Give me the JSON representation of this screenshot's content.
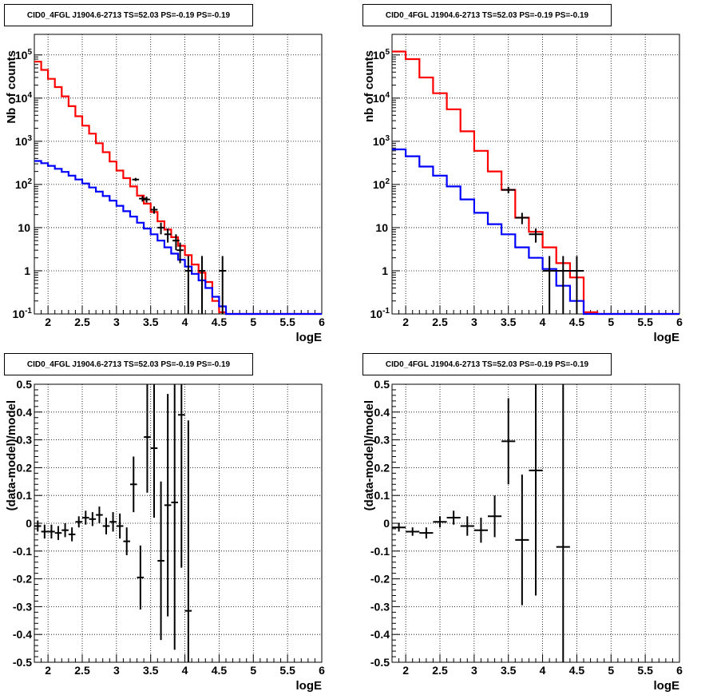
{
  "chart_data": [
    {
      "type": "line",
      "title": "CID0_4FGL J1904.6-2713 TS=52.03 PS=-0.19 PS=-0.19",
      "xlabel": "logE",
      "ylabel": "Nb of counts",
      "xlim": [
        1.8,
        6.0
      ],
      "ylim": [
        0.1,
        300000
      ],
      "yscale": "log",
      "grid": true,
      "xticks": [
        "2",
        "2.5",
        "3",
        "3.5",
        "4",
        "4.5",
        "5",
        "5.5",
        "6"
      ],
      "yticks": [
        "10^-1",
        "1",
        "10",
        "10^2",
        "10^3",
        "10^4",
        "10^5"
      ],
      "bin_edges": [
        1.8,
        1.9,
        2.0,
        2.1,
        2.2,
        2.3,
        2.4,
        2.5,
        2.6,
        2.7,
        2.8,
        2.9,
        3.0,
        3.1,
        3.2,
        3.3,
        3.4,
        3.5,
        3.6,
        3.7,
        3.8,
        3.9,
        4.0,
        4.1,
        4.2,
        4.3,
        4.4,
        4.5,
        4.6,
        4.7,
        4.8,
        4.9,
        5.0,
        5.1,
        5.2,
        5.3,
        5.4,
        5.5,
        5.6,
        5.7,
        5.8,
        5.9,
        6.0
      ],
      "series": [
        {
          "values": [
            70000,
            45000,
            28000,
            18000,
            11000,
            6500,
            3800,
            2300,
            1500,
            900,
            560,
            340,
            210,
            140,
            90,
            55,
            36,
            23,
            14,
            9,
            6,
            3.8,
            2.3,
            1.4,
            0.9,
            0.55,
            0.2,
            0.11,
            0.1,
            0.1,
            0.1,
            0.1,
            0.1,
            0.1,
            0.1,
            0.1,
            0.1,
            0.1,
            0.1,
            0.1,
            0.1,
            0.1
          ],
          "color": "#ff0000"
        },
        {
          "values": [
            350,
            310,
            270,
            230,
            195,
            160,
            130,
            105,
            85,
            68,
            54,
            42,
            32,
            24,
            18,
            13,
            9.5,
            7,
            5,
            3.5,
            2.5,
            1.8,
            1.25,
            0.85,
            0.6,
            0.4,
            0.25,
            0.15,
            0.1,
            0.1,
            0.1,
            0.1,
            0.1,
            0.1,
            0.1,
            0.1,
            0.1,
            0.1,
            0.1,
            0.1,
            0.1,
            0.1
          ],
          "color": "#0000ff"
        }
      ],
      "points": [
        {
          "x": 3.28,
          "y": 130,
          "xerr": 0.05,
          "ylo": 120,
          "yhi": 142
        },
        {
          "x": 3.38,
          "y": 47,
          "xerr": 0.05,
          "ylo": 40,
          "yhi": 54
        },
        {
          "x": 3.44,
          "y": 45,
          "xerr": 0.05,
          "ylo": 38,
          "yhi": 52
        },
        {
          "x": 3.55,
          "y": 26,
          "xerr": 0.05,
          "ylo": 21,
          "yhi": 31
        },
        {
          "x": 3.65,
          "y": 10,
          "xerr": 0.05,
          "ylo": 7,
          "yhi": 13
        },
        {
          "x": 3.75,
          "y": 7,
          "xerr": 0.05,
          "ylo": 4.5,
          "yhi": 9.5
        },
        {
          "x": 3.87,
          "y": 5,
          "xerr": 0.05,
          "ylo": 3,
          "yhi": 7
        },
        {
          "x": 3.93,
          "y": 3,
          "xerr": 0.05,
          "ylo": 1.5,
          "yhi": 4.5
        },
        {
          "x": 4.05,
          "y": 1,
          "xerr": 0.05,
          "ylo": 0.1,
          "yhi": 2.2
        },
        {
          "x": 4.25,
          "y": 1,
          "xerr": 0.05,
          "ylo": 0.1,
          "yhi": 2.2
        },
        {
          "x": 4.55,
          "y": 1,
          "xerr": 0.05,
          "ylo": 0.1,
          "yhi": 2.2
        }
      ]
    },
    {
      "type": "line",
      "title": "CID0_4FGL J1904.6-2713 TS=52.03 PS=-0.19 PS=-0.19",
      "xlabel": "logE",
      "ylabel": "nb of counts",
      "xlim": [
        1.8,
        6.0
      ],
      "ylim": [
        0.1,
        300000
      ],
      "yscale": "log",
      "grid": true,
      "xticks": [
        "2",
        "2.5",
        "3",
        "3.5",
        "4",
        "4.5",
        "5",
        "5.5",
        "6"
      ],
      "yticks": [
        "10^-1",
        "1",
        "10",
        "10^2",
        "10^3",
        "10^4",
        "10^5"
      ],
      "bin_edges": [
        1.8,
        2.0,
        2.2,
        2.4,
        2.6,
        2.8,
        3.0,
        3.2,
        3.4,
        3.6,
        3.8,
        4.0,
        4.2,
        4.4,
        4.6,
        4.8,
        5.0,
        5.2,
        5.4,
        5.6,
        5.8,
        6.0
      ],
      "series": [
        {
          "values": [
            120000,
            80000,
            30000,
            13000,
            5500,
            1700,
            600,
            200,
            75,
            17,
            8,
            3.5,
            1.5,
            0.7,
            0.11,
            0.1,
            0.1,
            0.1,
            0.1,
            0.1,
            0.1
          ],
          "color": "#ff0000"
        },
        {
          "values": [
            650,
            450,
            260,
            160,
            90,
            45,
            22,
            12,
            7,
            3.5,
            2,
            1.1,
            0.45,
            0.2,
            0.1,
            0.1,
            0.1,
            0.1,
            0.1,
            0.1,
            0.1
          ],
          "color": "#0000ff"
        }
      ],
      "points": [
        {
          "x": 3.5,
          "y": 75,
          "xerr": 0.1,
          "ylo": 62,
          "yhi": 88
        },
        {
          "x": 3.7,
          "y": 17,
          "xerr": 0.1,
          "ylo": 12,
          "yhi": 22
        },
        {
          "x": 3.9,
          "y": 7,
          "xerr": 0.1,
          "ylo": 4.5,
          "yhi": 9.5
        },
        {
          "x": 4.1,
          "y": 1,
          "xerr": 0.1,
          "ylo": 0.1,
          "yhi": 2.2
        },
        {
          "x": 4.3,
          "y": 1,
          "xerr": 0.1,
          "ylo": 0.1,
          "yhi": 2.2
        },
        {
          "x": 4.5,
          "y": 1,
          "xerr": 0.1,
          "ylo": 0.1,
          "yhi": 2.2
        }
      ]
    },
    {
      "type": "scatter",
      "title": "CID0_4FGL J1904.6-2713 TS=52.03 PS=-0.19 PS=-0.19",
      "xlabel": "logE",
      "ylabel": "(data-model)/model",
      "xlim": [
        1.8,
        6.0
      ],
      "ylim": [
        -0.5,
        0.5
      ],
      "grid": true,
      "xticks": [
        "2",
        "2.5",
        "3",
        "3.5",
        "4",
        "4.5",
        "5",
        "5.5",
        "6"
      ],
      "yticks": [
        "-0.5",
        "-0.4",
        "-0.3",
        "-0.2",
        "-0.1",
        "0",
        "0.1",
        "0.2",
        "0.3",
        "0.4",
        "0.5"
      ],
      "points": [
        {
          "x": 1.85,
          "y": -0.01,
          "xerr": 0.05,
          "yerr": 0.02
        },
        {
          "x": 1.95,
          "y": -0.03,
          "xerr": 0.05,
          "yerr": 0.025
        },
        {
          "x": 2.05,
          "y": -0.03,
          "xerr": 0.05,
          "yerr": 0.025
        },
        {
          "x": 2.15,
          "y": -0.035,
          "xerr": 0.05,
          "yerr": 0.025
        },
        {
          "x": 2.25,
          "y": -0.025,
          "xerr": 0.05,
          "yerr": 0.025
        },
        {
          "x": 2.35,
          "y": -0.04,
          "xerr": 0.05,
          "yerr": 0.025
        },
        {
          "x": 2.45,
          "y": 0.005,
          "xerr": 0.05,
          "yerr": 0.02
        },
        {
          "x": 2.55,
          "y": 0.02,
          "xerr": 0.05,
          "yerr": 0.025
        },
        {
          "x": 2.65,
          "y": 0.015,
          "xerr": 0.05,
          "yerr": 0.025
        },
        {
          "x": 2.75,
          "y": 0.03,
          "xerr": 0.05,
          "yerr": 0.03
        },
        {
          "x": 2.85,
          "y": -0.01,
          "xerr": 0.05,
          "yerr": 0.03
        },
        {
          "x": 2.95,
          "y": 0.005,
          "xerr": 0.05,
          "yerr": 0.035
        },
        {
          "x": 3.05,
          "y": -0.01,
          "xerr": 0.05,
          "yerr": 0.045
        },
        {
          "x": 3.15,
          "y": -0.065,
          "xerr": 0.05,
          "yerr": 0.05
        },
        {
          "x": 3.25,
          "y": 0.14,
          "xerr": 0.05,
          "yerr": 0.1
        },
        {
          "x": 3.35,
          "y": -0.195,
          "xerr": 0.05,
          "yerr": 0.115
        },
        {
          "x": 3.45,
          "y": 0.31,
          "xerr": 0.05,
          "yerr": 0.2
        },
        {
          "x": 3.55,
          "y": 0.27,
          "xerr": 0.05,
          "yerr": 0.25
        },
        {
          "x": 3.65,
          "y": -0.135,
          "xerr": 0.05,
          "yerr": 0.285
        },
        {
          "x": 3.75,
          "y": 0.065,
          "xerr": 0.05,
          "yerr": 0.4
        },
        {
          "x": 3.85,
          "y": 0.075,
          "xerr": 0.05,
          "yerr": 0.53
        },
        {
          "x": 3.95,
          "y": 0.39,
          "xerr": 0.05,
          "yerr": 0.55
        },
        {
          "x": 4.05,
          "y": -0.315,
          "xerr": 0.05,
          "yerr": 0.685
        }
      ]
    },
    {
      "type": "scatter",
      "title": "CID0_4FGL J1904.6-2713 TS=52.03 PS=-0.19 PS=-0.19",
      "xlabel": "logE",
      "ylabel": "(data-model)/model",
      "xlim": [
        1.8,
        6.0
      ],
      "ylim": [
        -0.5,
        0.5
      ],
      "grid": true,
      "xticks": [
        "2",
        "2.5",
        "3",
        "3.5",
        "4",
        "4.5",
        "5",
        "5.5",
        "6"
      ],
      "yticks": [
        "-0.5",
        "-0.4",
        "-0.3",
        "-0.2",
        "-0.1",
        "0",
        "0.1",
        "0.2",
        "0.3",
        "0.4",
        "0.5"
      ],
      "points": [
        {
          "x": 1.9,
          "y": -0.015,
          "xerr": 0.1,
          "yerr": 0.015
        },
        {
          "x": 2.1,
          "y": -0.03,
          "xerr": 0.1,
          "yerr": 0.015
        },
        {
          "x": 2.3,
          "y": -0.035,
          "xerr": 0.1,
          "yerr": 0.02
        },
        {
          "x": 2.5,
          "y": 0.005,
          "xerr": 0.1,
          "yerr": 0.02
        },
        {
          "x": 2.7,
          "y": 0.02,
          "xerr": 0.1,
          "yerr": 0.025
        },
        {
          "x": 2.9,
          "y": -0.01,
          "xerr": 0.1,
          "yerr": 0.035
        },
        {
          "x": 3.1,
          "y": -0.025,
          "xerr": 0.1,
          "yerr": 0.045
        },
        {
          "x": 3.3,
          "y": 0.025,
          "xerr": 0.1,
          "yerr": 0.075
        },
        {
          "x": 3.5,
          "y": 0.295,
          "xerr": 0.1,
          "yerr": 0.155
        },
        {
          "x": 3.7,
          "y": -0.06,
          "xerr": 0.1,
          "yerr": 0.235
        },
        {
          "x": 3.9,
          "y": 0.19,
          "xerr": 0.1,
          "yerr": 0.45
        },
        {
          "x": 4.3,
          "y": -0.085,
          "xerr": 0.1,
          "yerr": 0.6
        }
      ]
    }
  ]
}
